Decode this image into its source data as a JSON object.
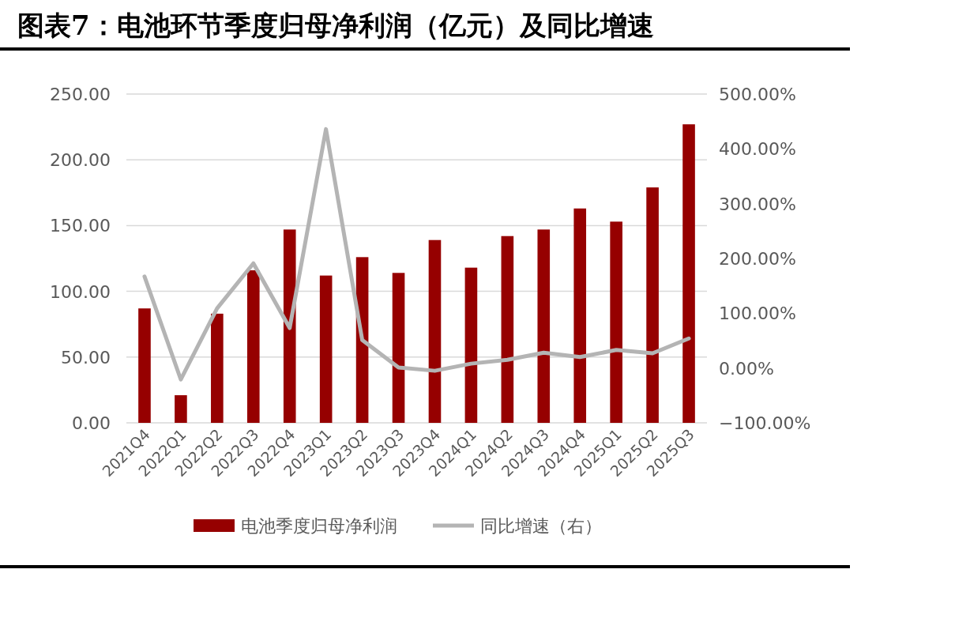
{
  "chart_data": {
    "type": "bar",
    "title": "图表7：电池环节季度归母净利润（亿元）及同比增速",
    "categories": [
      "2021Q4",
      "2022Q1",
      "2022Q2",
      "2022Q3",
      "2022Q4",
      "2023Q1",
      "2023Q2",
      "2023Q3",
      "2023Q4",
      "2024Q1",
      "2024Q2",
      "2024Q3",
      "2024Q4",
      "2025Q1",
      "2025Q2",
      "2025Q3"
    ],
    "series": [
      {
        "name": "电池季度归母净利润",
        "color": "#960000",
        "values": [
          87,
          21,
          83,
          116,
          147,
          112,
          126,
          114,
          139,
          118,
          142,
          147,
          163,
          153,
          179,
          227
        ]
      },
      {
        "name": "同比增速（右）",
        "type": "line",
        "axis": "y2",
        "color": "#b4b4b4",
        "values": [
          167,
          -21,
          109,
          191,
          73,
          436,
          51,
          1,
          -5,
          8,
          15,
          28,
          20,
          33,
          27,
          54
        ]
      }
    ],
    "ylim": [
      0,
      250
    ],
    "yticks": [
      {
        "value": 0,
        "label": "0.00"
      },
      {
        "value": 50,
        "label": "50.00"
      },
      {
        "value": 100,
        "label": "100.00"
      },
      {
        "value": 150,
        "label": "150.00"
      },
      {
        "value": 200,
        "label": "200.00"
      },
      {
        "value": 250,
        "label": "250.00"
      }
    ],
    "y2lim": [
      -100,
      500
    ],
    "y2ticks": [
      {
        "value": -100,
        "label": "−100.00%"
      },
      {
        "value": 0,
        "label": "0.00%"
      },
      {
        "value": 100,
        "label": "100.00%"
      },
      {
        "value": 200,
        "label": "200.00%"
      },
      {
        "value": 300,
        "label": "300.00%"
      },
      {
        "value": 400,
        "label": "400.00%"
      },
      {
        "value": 500,
        "label": "500.00%"
      }
    ],
    "grid": "y",
    "legend": "bottom"
  }
}
